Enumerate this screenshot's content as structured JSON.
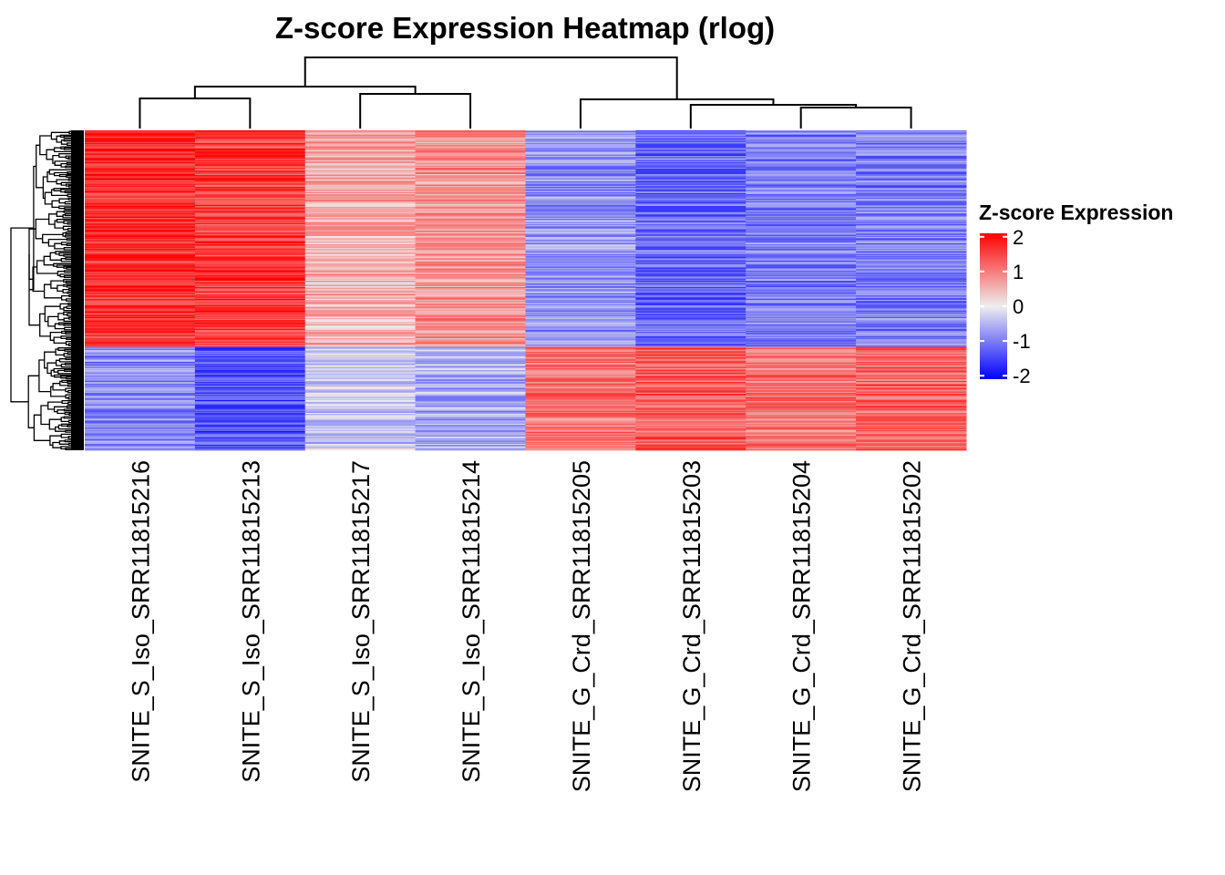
{
  "chart_data": {
    "type": "heatmap",
    "title": "Z-score Expression Heatmap (rlog)",
    "columns": [
      "SNITE_S_Iso_SRR11815216",
      "SNITE_S_Iso_SRR11815213",
      "SNITE_S_Iso_SRR11815217",
      "SNITE_S_Iso_SRR11815214",
      "SNITE_G_Crd_SRR11815205",
      "SNITE_G_Crd_SRR11815203",
      "SNITE_G_Crd_SRR11815204",
      "SNITE_G_Crd_SRR11815202"
    ],
    "legend": {
      "title": "Z-score Expression",
      "ticks": [
        "2",
        "1",
        "0",
        "-1",
        "-2"
      ],
      "range": [
        -2.1,
        2.1
      ],
      "colors": {
        "low": "#0000ff",
        "mid": "#eeeeee",
        "high": "#ff0000"
      }
    },
    "row_clusters": [
      {
        "fraction": 0.675,
        "means": [
          1.7,
          1.6,
          0.6,
          0.8,
          -0.8,
          -1.2,
          -1.0,
          -1.0
        ]
      },
      {
        "fraction": 0.325,
        "means": [
          -0.9,
          -1.4,
          -0.3,
          -0.6,
          1.1,
          1.3,
          1.1,
          1.2
        ]
      }
    ],
    "column_dendrogram": "(((SNITE_S_Iso_SRR11815216,SNITE_S_Iso_SRR11815213),(SNITE_S_Iso_SRR11815217,SNITE_S_Iso_SRR11815214)),(SNITE_G_Crd_SRR11815205,(SNITE_G_Crd_SRR11815203,(SNITE_G_Crd_SRR11815204,SNITE_G_Crd_SRR11815202))))",
    "row_dendrogram": true
  }
}
